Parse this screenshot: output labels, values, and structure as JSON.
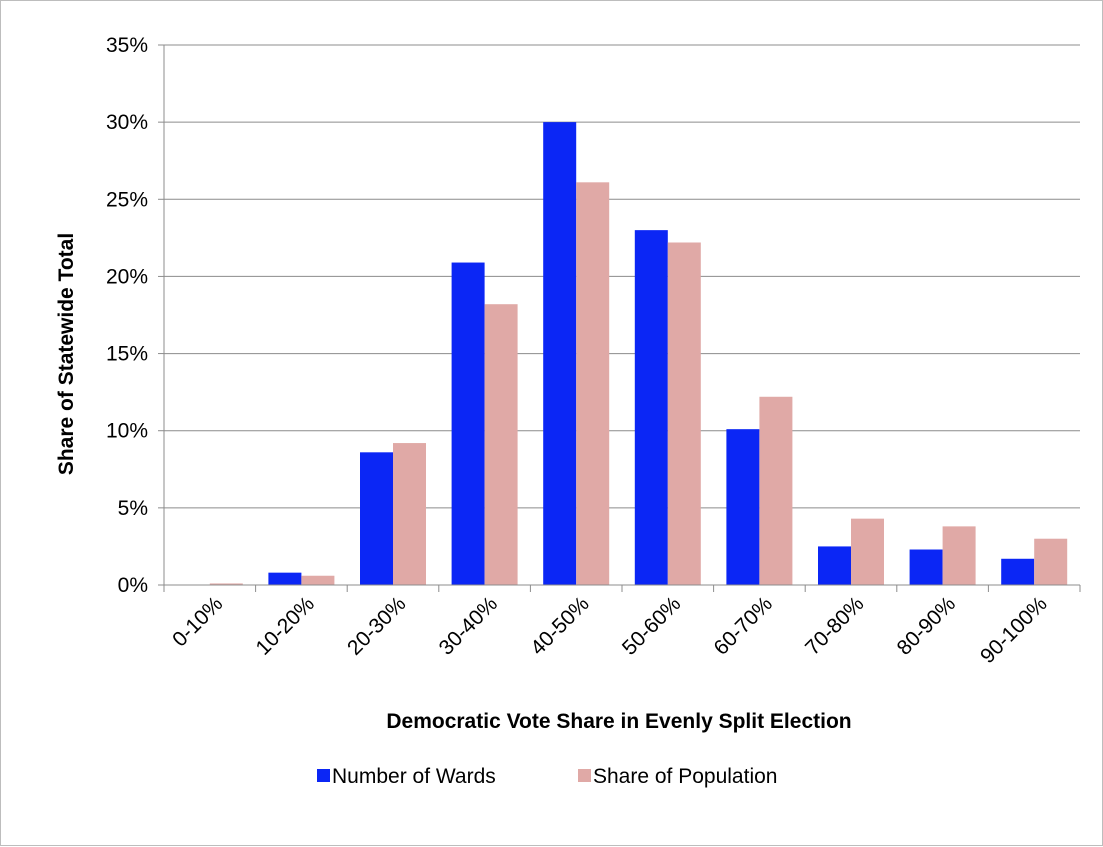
{
  "chart_data": {
    "type": "bar",
    "title": "",
    "xlabel": "Democratic Vote Share in Evenly Split Election",
    "ylabel": "Share of Statewide Total",
    "categories": [
      "0-10%",
      "10-20%",
      "20-30%",
      "30-40%",
      "40-50%",
      "50-60%",
      "60-70%",
      "70-80%",
      "80-90%",
      "90-100%"
    ],
    "series": [
      {
        "name": "Number of Wards",
        "color": "#0b26f5",
        "values": [
          0.0,
          0.8,
          8.6,
          20.9,
          30.0,
          23.0,
          10.1,
          2.5,
          2.3,
          1.7
        ]
      },
      {
        "name": "Share of Population",
        "color": "#e0a9a6",
        "values": [
          0.1,
          0.6,
          9.2,
          18.2,
          26.1,
          22.2,
          12.2,
          4.3,
          3.8,
          3.0
        ]
      }
    ],
    "ylim": [
      0,
      35
    ],
    "yticks": [
      0,
      5,
      10,
      15,
      20,
      25,
      30,
      35
    ],
    "ytick_labels": [
      "0%",
      "5%",
      "10%",
      "15%",
      "20%",
      "25%",
      "30%",
      "35%"
    ],
    "grid": true,
    "legend_position": "bottom"
  }
}
